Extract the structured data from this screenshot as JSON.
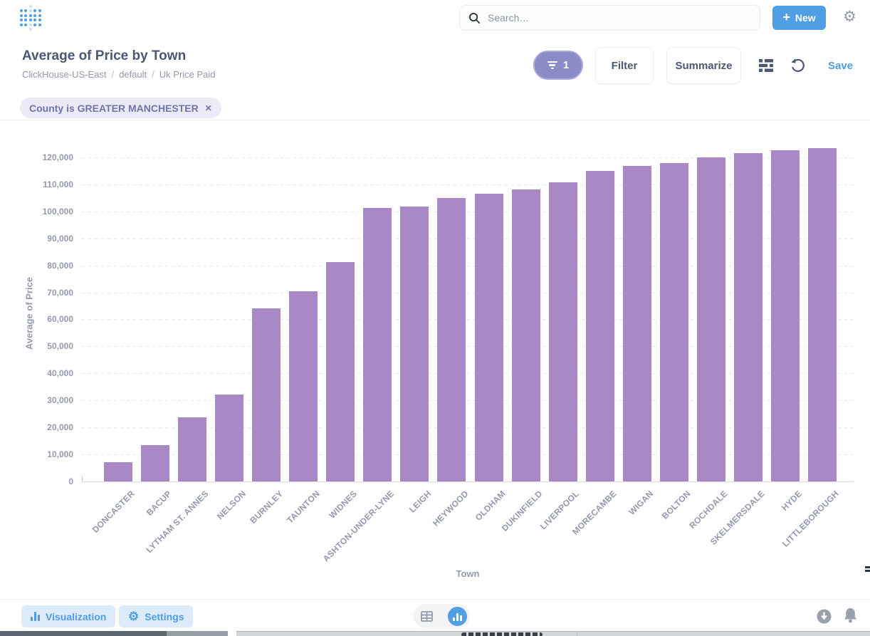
{
  "header": {
    "search": {
      "placeholder": "Search…"
    },
    "new_button_label": "New"
  },
  "icons": {
    "plus": "+",
    "gear": "⚙",
    "close": "✕"
  },
  "question": {
    "title": "Average of Price by Town",
    "breadcrumb": [
      "ClickHouse-US-East",
      "default",
      "Uk Price Paid"
    ],
    "breadcrumb_separator": "/",
    "filter_pill_count": "1",
    "filter_button_label": "Filter",
    "summarize_button_label": "Summarize",
    "save_label": "Save"
  },
  "filter_chips": [
    {
      "label": "County is GREATER MANCHESTER"
    }
  ],
  "footer": {
    "visualization_label": "Visualization",
    "settings_label": "Settings"
  },
  "chart_data": {
    "type": "bar",
    "title": "Average of Price by Town",
    "xlabel": "Town",
    "ylabel": "Average of Price",
    "categories": [
      "DONCASTER",
      "BACUP",
      "LYTHAM ST. ANNES",
      "NELSON",
      "BURNLEY",
      "TAUNTON",
      "WIDNES",
      "ASHTON-UNDER-LYNE",
      "LEIGH",
      "HEYWOOD",
      "OLDHAM",
      "DUKINFIELD",
      "LIVERPOOL",
      "MORECAMBE",
      "WIGAN",
      "BOLTON",
      "ROCHDALE",
      "SKELMERSDALE",
      "HYDE",
      "LITTLEBOROUGH"
    ],
    "values": [
      7000,
      13400,
      23800,
      32300,
      64000,
      70500,
      81100,
      101300,
      101800,
      104900,
      106600,
      108200,
      110800,
      114900,
      116700,
      118000,
      120000,
      121700,
      122500,
      123500
    ],
    "ylim": [
      0,
      130000
    ],
    "ytick_interval": 10000,
    "ytick_max": 120000,
    "grid": "horizontal-dashed",
    "legend": "none",
    "bar_color": "#A989C5"
  },
  "colors": {
    "brand_blue": "#509EE3",
    "filter_purple": "#8A8CC8",
    "chip_text_purple": "#7173AD",
    "bar_purple": "#A989C5",
    "text_dark": "#4C5773",
    "text_muted": "#949AAB"
  }
}
